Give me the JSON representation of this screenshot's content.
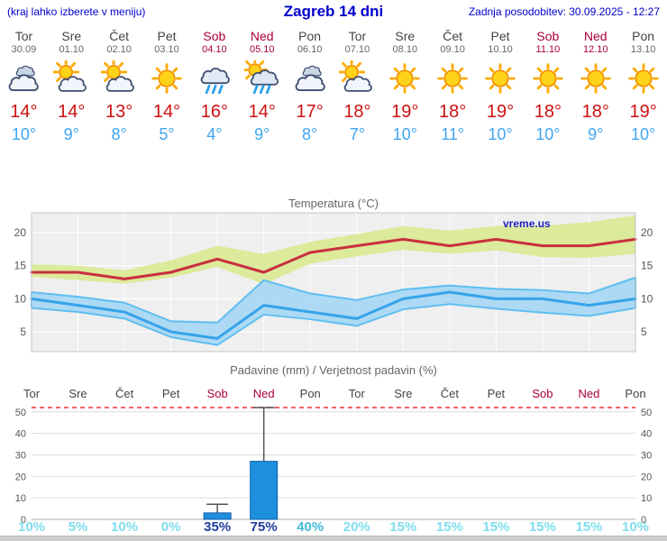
{
  "header": {
    "left_note": "(kraj lahko izberete v meniju)",
    "title": "Zagreb 14 dni",
    "updated": "Zadnja posodobitev: 30.09.2025 - 12:27"
  },
  "days": [
    {
      "name": "Tor",
      "date": "30.09",
      "icon": "cloudy",
      "tmax": "14°",
      "tmin": "10°",
      "weekend": false
    },
    {
      "name": "Sre",
      "date": "01.10",
      "icon": "partly-cloudy",
      "tmax": "14°",
      "tmin": "9°",
      "weekend": false
    },
    {
      "name": "Čet",
      "date": "02.10",
      "icon": "partly-cloudy",
      "tmax": "13°",
      "tmin": "8°",
      "weekend": false
    },
    {
      "name": "Pet",
      "date": "03.10",
      "icon": "sunny",
      "tmax": "14°",
      "tmin": "5°",
      "weekend": false
    },
    {
      "name": "Sob",
      "date": "04.10",
      "icon": "rain",
      "tmax": "16°",
      "tmin": "4°",
      "weekend": true
    },
    {
      "name": "Ned",
      "date": "05.10",
      "icon": "rain-sun",
      "tmax": "14°",
      "tmin": "9°",
      "weekend": true
    },
    {
      "name": "Pon",
      "date": "06.10",
      "icon": "cloudy",
      "tmax": "17°",
      "tmin": "8°",
      "weekend": false
    },
    {
      "name": "Tor",
      "date": "07.10",
      "icon": "partly-cloudy",
      "tmax": "18°",
      "tmin": "7°",
      "weekend": false
    },
    {
      "name": "Sre",
      "date": "08.10",
      "icon": "sunny",
      "tmax": "19°",
      "tmin": "10°",
      "weekend": false
    },
    {
      "name": "Čet",
      "date": "09.10",
      "icon": "sunny",
      "tmax": "18°",
      "tmin": "11°",
      "weekend": false
    },
    {
      "name": "Pet",
      "date": "10.10",
      "icon": "sunny",
      "tmax": "19°",
      "tmin": "10°",
      "weekend": false
    },
    {
      "name": "Sob",
      "date": "11.10",
      "icon": "sunny",
      "tmax": "18°",
      "tmin": "10°",
      "weekend": true
    },
    {
      "name": "Ned",
      "date": "12.10",
      "icon": "sunny",
      "tmax": "18°",
      "tmin": "9°",
      "weekend": true
    },
    {
      "name": "Pon",
      "date": "13.10",
      "icon": "sunny",
      "tmax": "19°",
      "tmin": "10°",
      "weekend": false
    }
  ],
  "chart_data": [
    {
      "type": "line",
      "title": "Temperatura (°C)",
      "watermark": "vreme.us",
      "x": [
        "Tor",
        "Sre",
        "Čet",
        "Pet",
        "Sob",
        "Ned",
        "Pon",
        "Tor",
        "Sre",
        "Čet",
        "Pet",
        "Sob",
        "Ned",
        "Pon"
      ],
      "ylim": [
        2,
        23
      ],
      "yticks": [
        5,
        10,
        15,
        20
      ],
      "grid": true,
      "series": [
        {
          "name": "tmax",
          "values": [
            14,
            14,
            13,
            14,
            16,
            14,
            17,
            18,
            19,
            18,
            19,
            18,
            18,
            19
          ],
          "band_hi": [
            15.2,
            15,
            14.3,
            15.8,
            18,
            16.8,
            18.6,
            19.8,
            21,
            20.3,
            21,
            21,
            21.6,
            22.6
          ],
          "band_lo": [
            13.3,
            12.8,
            12.3,
            13.2,
            14.8,
            12.2,
            15.3,
            16.4,
            17.4,
            16.8,
            17.3,
            16.3,
            16.2,
            16.8
          ]
        },
        {
          "name": "tmin",
          "values": [
            10,
            9,
            8,
            5,
            4,
            9,
            8,
            7,
            10,
            11,
            10,
            10,
            9,
            10
          ],
          "band_hi": [
            11,
            10.3,
            9.4,
            6.6,
            6.4,
            12.8,
            10.8,
            9.8,
            11.4,
            12,
            11.5,
            11.3,
            10.8,
            13.2
          ],
          "band_lo": [
            8.6,
            8,
            7,
            4.2,
            3,
            7.6,
            6.9,
            5.9,
            8.4,
            9.2,
            8.5,
            7.9,
            7.4,
            8.6
          ]
        }
      ]
    },
    {
      "type": "bar",
      "title": "Padavine (mm) / Verjetnost padavin (%)",
      "categories": [
        "Tor",
        "Sre",
        "Čet",
        "Pet",
        "Sob",
        "Ned",
        "Pon",
        "Tor",
        "Sre",
        "Čet",
        "Pet",
        "Sob",
        "Ned",
        "Pon"
      ],
      "values": [
        0,
        0,
        0,
        0,
        3,
        27,
        0,
        0,
        0,
        0,
        0,
        0,
        0,
        0
      ],
      "range_hi": [
        0,
        0,
        0,
        0,
        7,
        52,
        0,
        0,
        0,
        0,
        0,
        0,
        0,
        0
      ],
      "probabilities": [
        "10%",
        "5%",
        "10%",
        "0%",
        "35%",
        "75%",
        "40%",
        "20%",
        "15%",
        "15%",
        "15%",
        "15%",
        "15%",
        "10%"
      ],
      "prob_levels": [
        "low",
        "low",
        "low",
        "low",
        "high",
        "high",
        "mid",
        "low",
        "low",
        "low",
        "low",
        "low",
        "low",
        "low"
      ],
      "ylim": [
        0,
        52
      ],
      "yticks": [
        0,
        10,
        20,
        30,
        40,
        50
      ]
    }
  ],
  "colors": {
    "header_blue": "#0000cc",
    "tmax_red": "#cc1111",
    "tmin_blue": "#3fa5f0",
    "weekend": "#aa0033",
    "weekday": "#444444",
    "date_gray": "#666666",
    "chart_bg": "#efefef",
    "chart_title": "#666666",
    "max_line": "#c92f3f",
    "max_band": "#dcea9b",
    "min_line": "#36a3ea",
    "min_band": "#9fd4f5",
    "band_edge": "#5fbef0",
    "bar_fill": "#1e8fdc",
    "bar_edge": "#0f5fa8",
    "limit_line": "#f03030",
    "watermark": "#2222bb",
    "prob_low": "#7fdeed",
    "prob_mid": "#45bcd8",
    "prob_high": "#1f3e9e",
    "grid_line": "#dcdcdc",
    "axis_text": "#555555"
  }
}
